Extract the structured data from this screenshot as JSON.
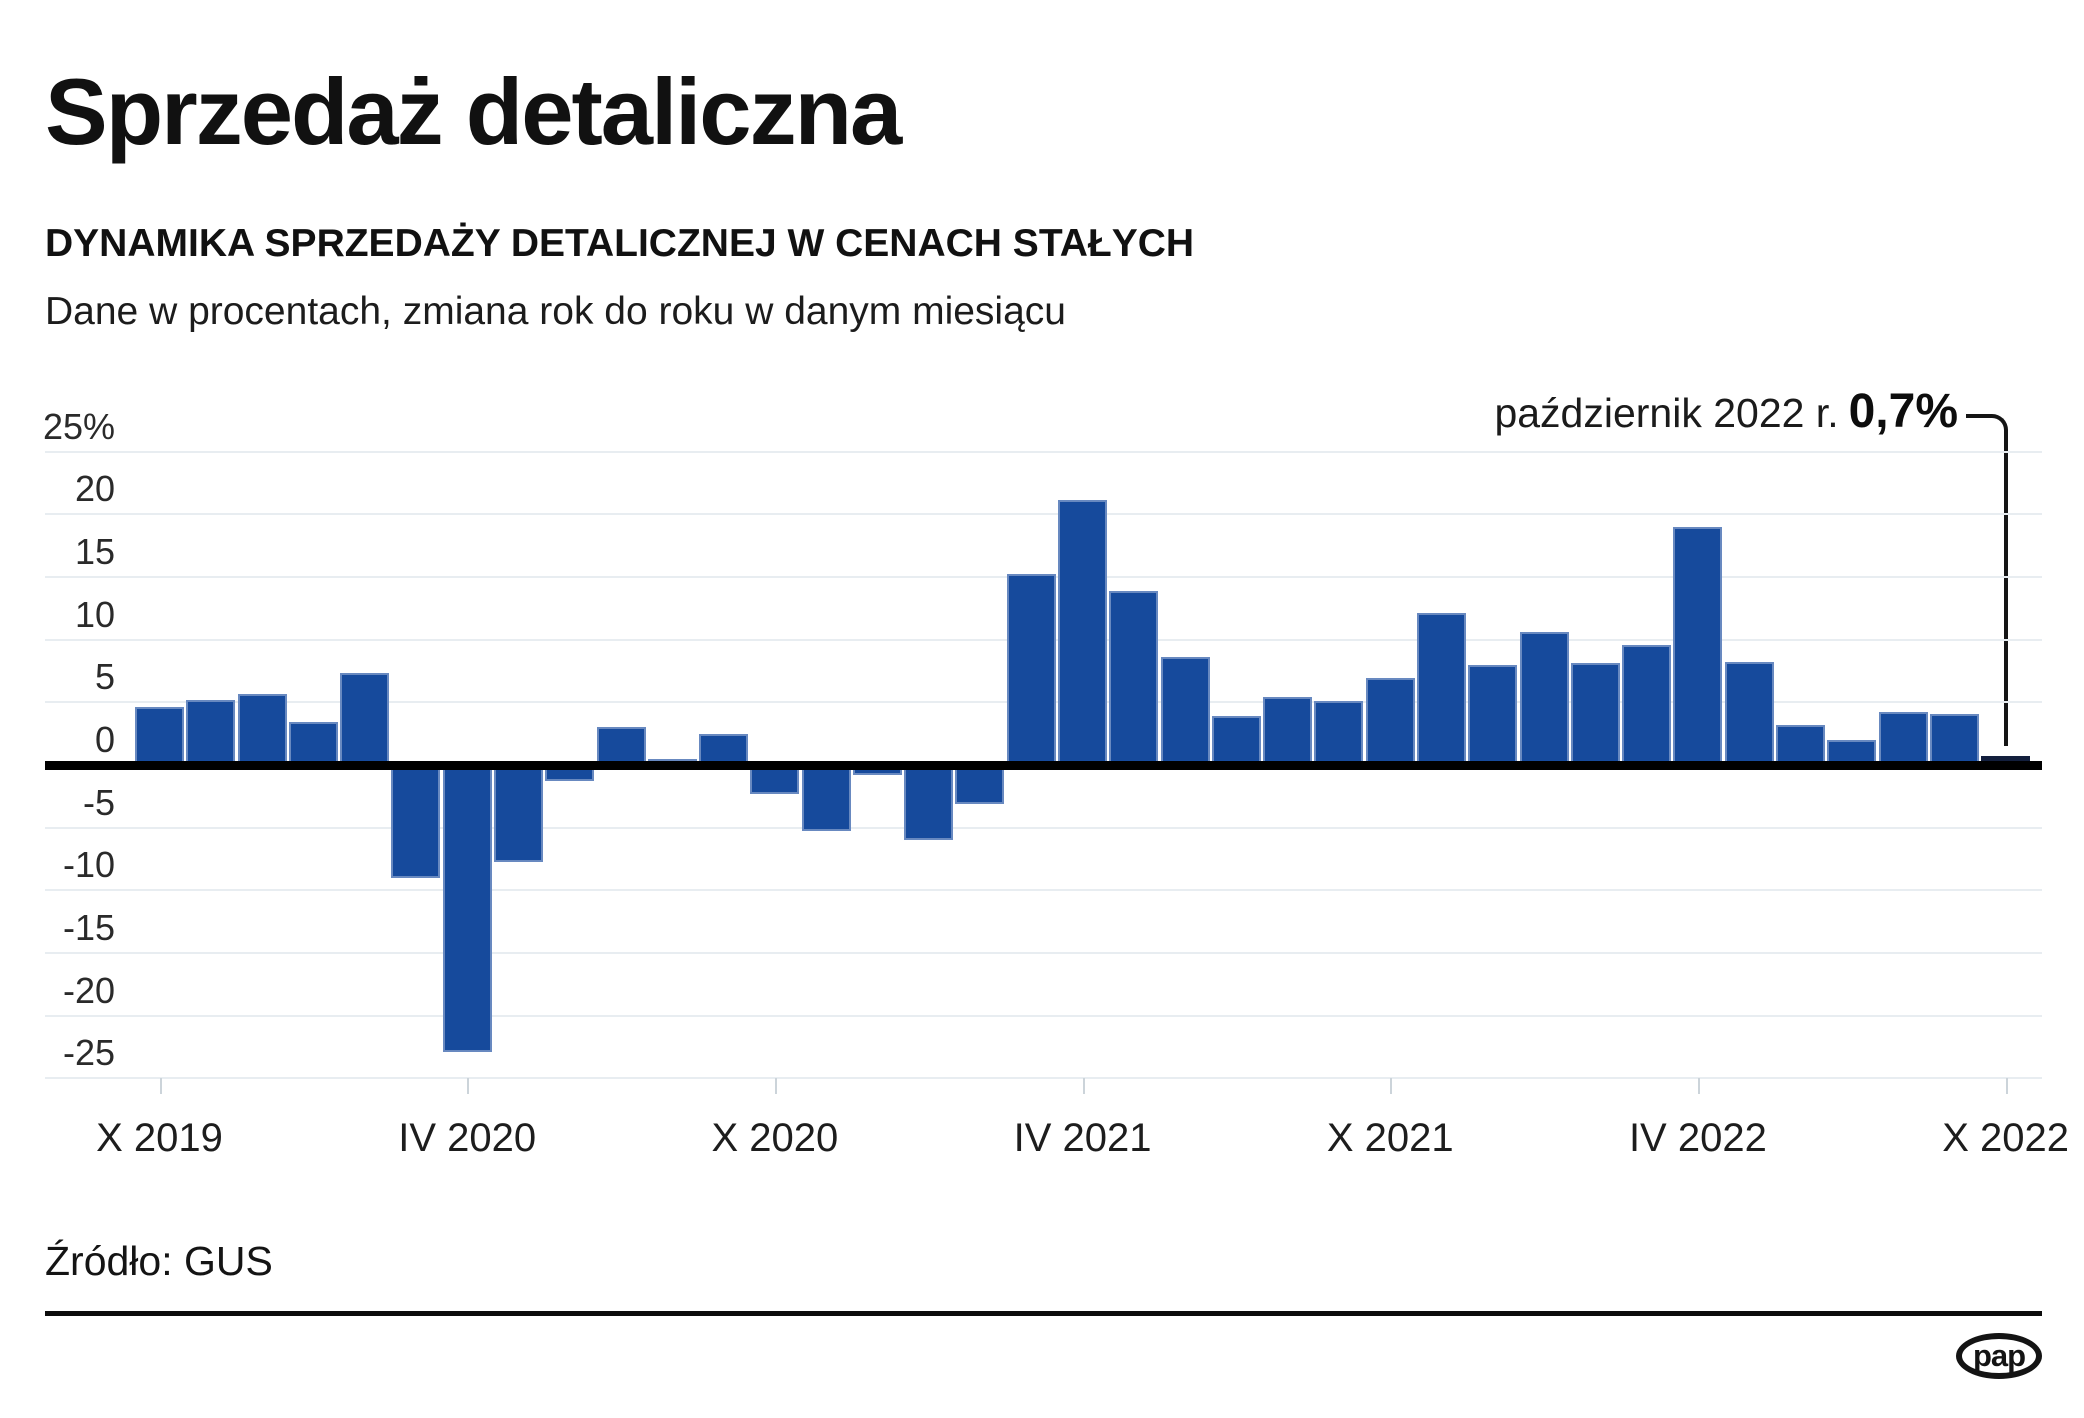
{
  "header": {
    "title": "Sprzedaż detaliczna",
    "subtitle": "DYNAMIKA SPRZEDAŻY DETALICZNEJ W CENACH STAŁYCH",
    "description": "Dane w procentach, zmiana rok do roku w danym miesiącu"
  },
  "annotation": {
    "label": "październik 2022 r.",
    "value": "0,7%"
  },
  "footer": {
    "source": "Źródło: GUS",
    "logo_text": "pap"
  },
  "colors": {
    "bar": "#164a9c",
    "bar_highlight": "#131f3d",
    "gridline": "#e8edf1",
    "zero_line": "#000000",
    "callout": "#151515",
    "text": "#1a1a1a"
  },
  "chart_data": {
    "type": "bar",
    "title": "Dynamika sprzedaży detalicznej w cenach stałych",
    "xlabel": "",
    "ylabel": "%",
    "ylim": [
      -25,
      25
    ],
    "grid": true,
    "legend": "none",
    "categories": [
      "X 2019",
      "XI 2019",
      "XII 2019",
      "I 2020",
      "II 2020",
      "III 2020",
      "IV 2020",
      "V 2020",
      "VI 2020",
      "VII 2020",
      "VIII 2020",
      "IX 2020",
      "X 2020",
      "XI 2020",
      "XII 2020",
      "I 2021",
      "II 2021",
      "III 2021",
      "IV 2021",
      "V 2021",
      "VI 2021",
      "VII 2021",
      "VIII 2021",
      "IX 2021",
      "X 2021",
      "XI 2021",
      "XII 2021",
      "I 2022",
      "II 2022",
      "III 2022",
      "IV 2022",
      "V 2022",
      "VI 2022",
      "VII 2022",
      "VIII 2022",
      "IX 2022",
      "X 2022"
    ],
    "values": [
      4.6,
      5.2,
      5.7,
      3.4,
      7.3,
      -9.0,
      -22.9,
      -7.7,
      -1.3,
      3.0,
      0.5,
      2.5,
      -2.3,
      -5.3,
      -0.8,
      -6.0,
      -3.1,
      15.2,
      21.1,
      13.9,
      8.6,
      3.9,
      5.4,
      5.1,
      6.9,
      12.1,
      8.0,
      10.6,
      8.1,
      9.6,
      19.0,
      8.2,
      3.2,
      2.0,
      4.2,
      4.1,
      0.7
    ],
    "highlight_index": 36,
    "ytick_values": [
      25,
      20,
      15,
      10,
      5,
      0,
      -5,
      -10,
      -15,
      -20,
      -25
    ],
    "ytick_labels": [
      "25%",
      "20",
      "15",
      "10",
      "5",
      "0",
      "-5",
      "-10",
      "-15",
      "-20",
      "-25"
    ],
    "xtick_positions": [
      0,
      6,
      12,
      18,
      24,
      30,
      36
    ],
    "xtick_labels": [
      "X 2019",
      "IV 2020",
      "X 2020",
      "IV 2021",
      "X 2021",
      "IV 2022",
      "X 2022"
    ]
  }
}
